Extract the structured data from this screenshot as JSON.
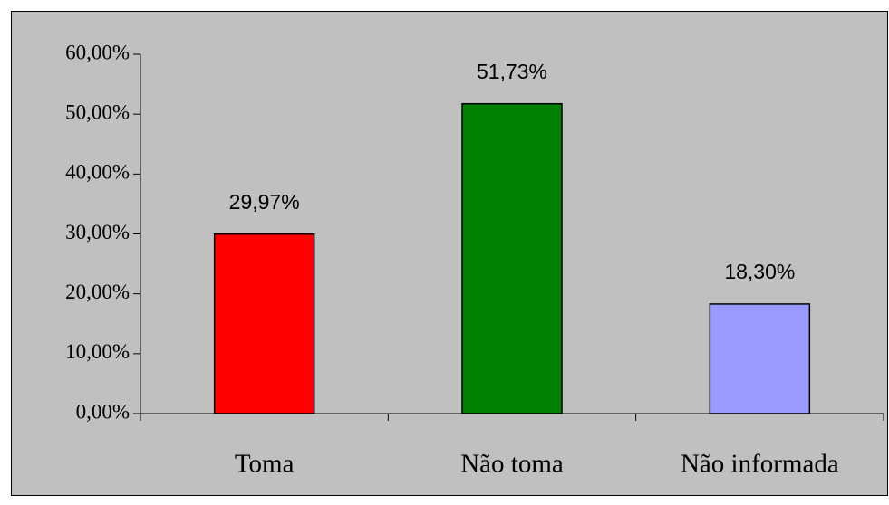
{
  "chart_data": {
    "type": "bar",
    "categories": [
      "Toma",
      "Não toma",
      "Não informada"
    ],
    "values": [
      29.97,
      51.73,
      18.3
    ],
    "value_labels": [
      "29,97%",
      "51,73%",
      "18,30%"
    ],
    "colors": [
      "#ff0000",
      "#008000",
      "#9999ff"
    ],
    "ylim": [
      0,
      60
    ],
    "yticks": [
      {
        "value": 0,
        "label": "0,00%"
      },
      {
        "value": 10,
        "label": "10,00%"
      },
      {
        "value": 20,
        "label": "20,00%"
      },
      {
        "value": 30,
        "label": "30,00%"
      },
      {
        "value": 40,
        "label": "40,00%"
      },
      {
        "value": 50,
        "label": "50,00%"
      },
      {
        "value": 60,
        "label": "60,00%"
      }
    ],
    "grid": false
  }
}
